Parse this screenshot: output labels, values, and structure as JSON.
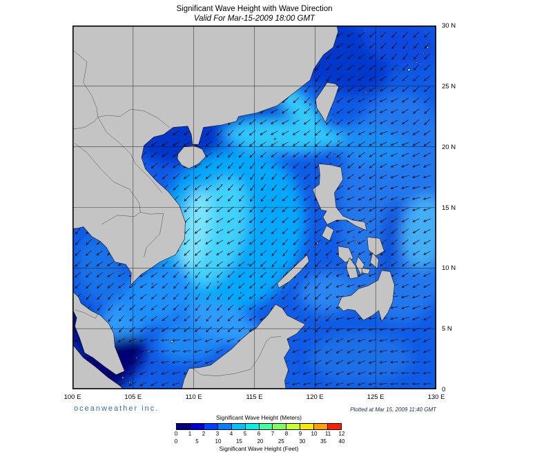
{
  "title": "Significant Wave Height with Wave Direction",
  "subtitle": "Valid For Mar-15-2009 18:00 GMT",
  "branding": "oceanweather inc.",
  "plotted_note": "Plotted at Mar 15, 2009 11:40 GMT",
  "axes": {
    "x_ticks": [
      "100 E",
      "105 E",
      "110 E",
      "115 E",
      "120 E",
      "125 E",
      "130 E"
    ],
    "y_ticks": [
      "0",
      "5 N",
      "10 N",
      "15 N",
      "20 N",
      "25 N",
      "30 N"
    ]
  },
  "legend": {
    "meters_label": "Significant Wave Height (Meters)",
    "feet_label": "Significant Wave Height (Feet)",
    "meters_ticks": [
      0,
      1,
      2,
      3,
      4,
      5,
      6,
      7,
      8,
      9,
      10,
      11,
      12
    ],
    "feet_ticks": [
      0,
      5,
      10,
      15,
      20,
      25,
      30,
      35,
      40
    ],
    "colors": [
      "#000080",
      "#0000D0",
      "#0040FF",
      "#0080FF",
      "#00C0FF",
      "#00F0E8",
      "#40FFA0",
      "#80FF60",
      "#C8FF30",
      "#FFE800",
      "#FFA000",
      "#FF2000"
    ]
  },
  "map_colors": {
    "ocean_base": "#0F5CE6",
    "land": "#C4C4C4",
    "coastline": "#151515",
    "arrows": "#0B0B16"
  },
  "chart_data": {
    "type": "heatmap",
    "title": "Significant Wave Height with Wave Direction",
    "valid_time": "Mar-15-2009 18:00 GMT",
    "plotted_time": "Mar 15, 2009 11:40 GMT",
    "x_axis": {
      "ticks": [
        "100 E",
        "105 E",
        "110 E",
        "115 E",
        "120 E",
        "125 E",
        "130 E"
      ],
      "range_deg_east": [
        100,
        130
      ]
    },
    "y_axis": {
      "ticks": [
        "0",
        "5 N",
        "10 N",
        "15 N",
        "20 N",
        "25 N",
        "30 N"
      ],
      "range_deg_north": [
        0,
        30
      ]
    },
    "colorbar": {
      "units_primary": "Meters",
      "units_secondary": "Feet",
      "range_meters": [
        0,
        12
      ],
      "range_feet": [
        0,
        40
      ],
      "segments": 12
    },
    "field_summary": "Wave heights mostly 0.5-4 m: near-calm (navy) in the Malacca Strait corner, brightest cyan (3-4.5 m) across the central South China Sea, off central Vietnam and through the Luzon and Taiwan Straits, 1.5-2.5 m blues over the Pacific east of the Philippines and the East China Sea; direction arrows point predominantly toward the southwest (northeast monsoon swell)."
  }
}
